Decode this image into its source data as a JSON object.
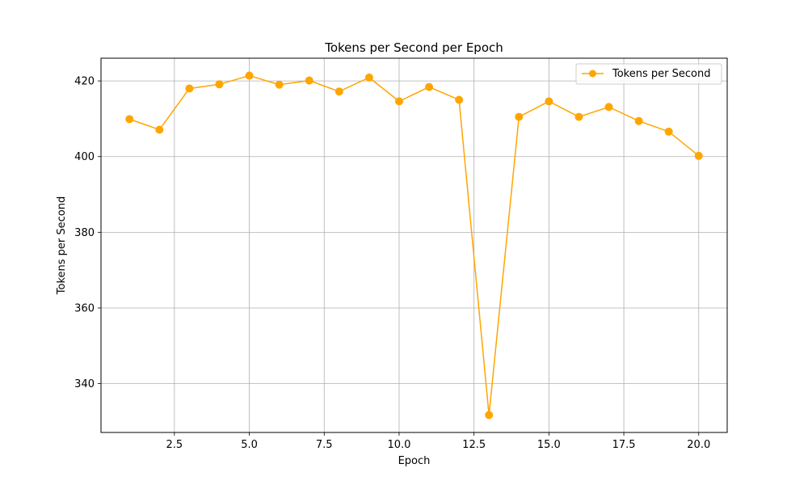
{
  "chart_data": {
    "type": "line",
    "title": "Tokens per Second per Epoch",
    "xlabel": "Epoch",
    "ylabel": "Tokens per Second",
    "xlim": [
      0.05,
      20.95
    ],
    "ylim": [
      327.1,
      426.0
    ],
    "x_ticks": [
      2.5,
      5.0,
      7.5,
      10.0,
      12.5,
      15.0,
      17.5,
      20.0
    ],
    "x_tick_labels": [
      "2.5",
      "5.0",
      "7.5",
      "10.0",
      "12.5",
      "15.0",
      "17.5",
      "20.0"
    ],
    "y_ticks": [
      340,
      360,
      380,
      400,
      420
    ],
    "y_tick_labels": [
      "340",
      "360",
      "380",
      "400",
      "420"
    ],
    "grid": true,
    "legend_position": "top-right",
    "series": [
      {
        "name": "Tokens per Second",
        "color": "#ffa500",
        "marker": "circle",
        "x": [
          1,
          2,
          3,
          4,
          5,
          6,
          7,
          8,
          9,
          10,
          11,
          12,
          13,
          14,
          15,
          16,
          17,
          18,
          19,
          20
        ],
        "y": [
          409.9,
          407.1,
          418.0,
          419.1,
          421.4,
          419.0,
          420.1,
          417.2,
          420.9,
          414.6,
          418.4,
          415.0,
          331.7,
          410.5,
          414.6,
          410.5,
          413.1,
          409.4,
          406.6,
          400.2
        ]
      }
    ]
  }
}
